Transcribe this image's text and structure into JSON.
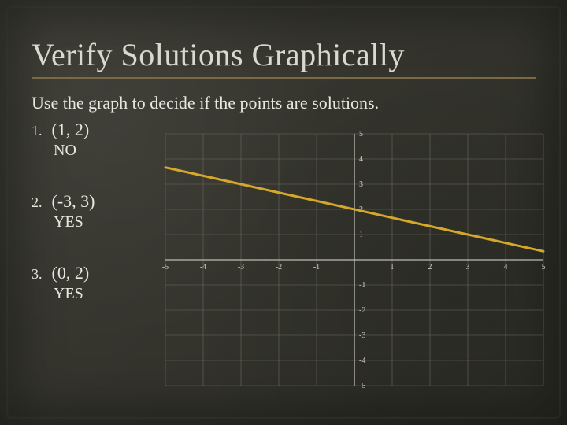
{
  "title": "Verify Solutions Graphically",
  "subtitle": "Use the graph to decide if the points are solutions.",
  "items": [
    {
      "num": "1.",
      "point": "(1, 2)",
      "answer": "NO"
    },
    {
      "num": "2.",
      "point": "(-3, 3)",
      "answer": "YES"
    },
    {
      "num": "3.",
      "point": "(0, 2)",
      "answer": "YES"
    }
  ],
  "chart": {
    "type": "line",
    "xlim": [
      -5,
      5
    ],
    "ylim": [
      -5,
      5
    ],
    "xtick_step": 1,
    "ytick_step": 1,
    "grid_color": "#6a6a60",
    "axis_color": "#bdbdb2",
    "label_color": "#cfcfc4",
    "label_fontsize": 10,
    "background": "transparent",
    "line": {
      "points": [
        [
          -5,
          3.666
        ],
        [
          5,
          0.333
        ]
      ],
      "color": "#d4a82a",
      "width": 3
    }
  },
  "colors": {
    "title": "#d9d9d0",
    "text": "#e8e8e0",
    "underline": "#7a6a44",
    "slide_bg": "#3a3a32"
  }
}
